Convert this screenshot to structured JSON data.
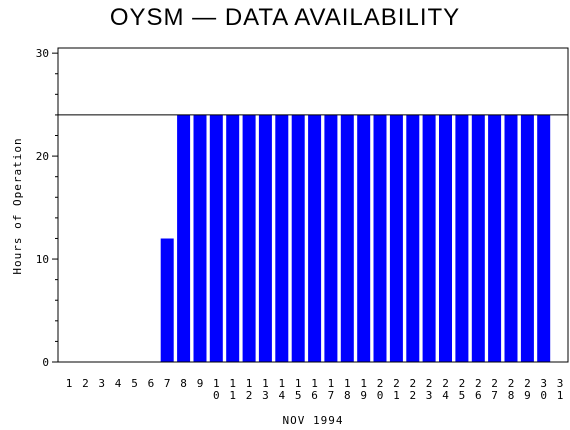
{
  "chart_data": {
    "type": "bar",
    "title": "OYSM — DATA AVAILABILITY",
    "xlabel": "NOV 1994",
    "ylabel": "Hours of Operation",
    "ylim": [
      0,
      30.5
    ],
    "yticks": [
      0,
      10,
      20,
      30
    ],
    "reference_line": 24,
    "color": "#0000ff",
    "categories": [
      "1",
      "2",
      "3",
      "4",
      "5",
      "6",
      "7",
      "8",
      "9",
      "10",
      "11",
      "12",
      "13",
      "14",
      "15",
      "16",
      "17",
      "18",
      "19",
      "20",
      "21",
      "22",
      "23",
      "24",
      "25",
      "26",
      "27",
      "28",
      "29",
      "30",
      "31"
    ],
    "values": [
      0,
      0,
      0,
      0,
      0,
      0,
      12,
      24,
      24,
      24,
      24,
      24,
      24,
      24,
      24,
      24,
      24,
      24,
      24,
      24,
      24,
      24,
      24,
      24,
      24,
      24,
      24,
      24,
      24,
      24,
      0
    ]
  }
}
